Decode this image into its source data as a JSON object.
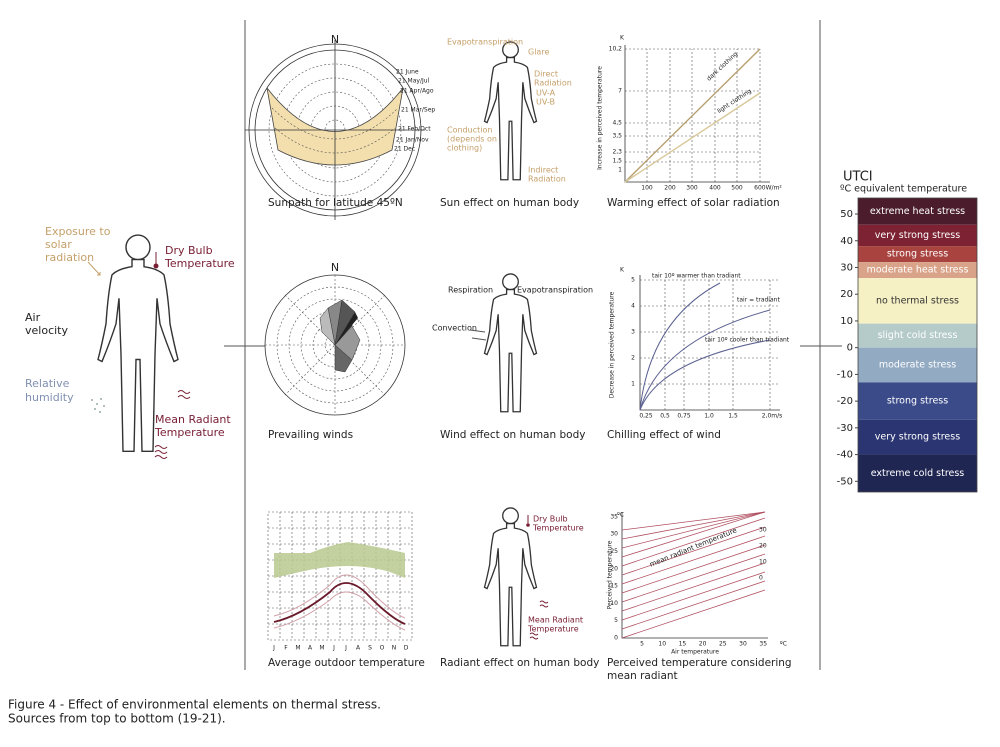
{
  "body_diagram": {
    "solar": [
      "Exposure to",
      "solar",
      "radiation"
    ],
    "dry_bulb": [
      "Dry Bulb",
      "Temperature"
    ],
    "air": [
      "Air",
      "velocity"
    ],
    "humidity": [
      "Relative",
      "humidity"
    ],
    "mean_radiant": [
      "Mean Radiant",
      "Temperature"
    ]
  },
  "panels": [
    {
      "caption": [
        "Sunpath for latitude 45ºN"
      ],
      "labels": [
        "N",
        "21 June",
        "21 May/Jul",
        "21 Apr/Ago",
        "21 Mar/Sep",
        "21 Feb/Oct",
        "21 Jan/Nov",
        "21 Dec"
      ]
    },
    {
      "caption": [
        "Sun effect on human body"
      ],
      "labels": [
        "Evapotranspiration",
        "Glare",
        "Direct",
        "Radiation",
        "UV-A",
        "UV-B",
        "Conduction",
        "(depends on",
        "clothing)",
        "Indirect",
        "Radiation"
      ]
    },
    {
      "caption": [
        "Warming effect of solar radiation"
      ],
      "labels": [
        "K",
        "Increase in perceived temperature",
        "dark clothing",
        "light clothing"
      ],
      "yticks": [
        "10,2",
        "7",
        "4,5",
        "3,5",
        "2,3",
        "1,5",
        "1"
      ],
      "xticks": [
        "100",
        "200",
        "300",
        "400",
        "500",
        "600W/m²"
      ]
    },
    {
      "caption": [
        "Prevailing winds"
      ],
      "labels": [
        "N"
      ]
    },
    {
      "caption": [
        "Wind effect on human body"
      ],
      "labels": [
        "Respiration",
        "Evapotranspiration",
        "Convection"
      ]
    },
    {
      "caption": [
        "Chilling effect of wind"
      ],
      "labels": [
        "K",
        "Decrease in perceived temperature",
        "tair 10º warmer than tradiant",
        "tair = tradiant",
        "tair 10º cooler than tradiant"
      ],
      "yticks": [
        "1",
        "2",
        "3",
        "4",
        "5"
      ],
      "xticks": [
        "0,25",
        "0,5",
        "0,75",
        "1,0",
        "1,5",
        "2,0m/s"
      ]
    },
    {
      "caption": [
        "Average outdoor temperature"
      ],
      "labels": [
        "J",
        "F",
        "M",
        "A",
        "M",
        "J",
        "J",
        "A",
        "S",
        "O",
        "N",
        "D"
      ]
    },
    {
      "caption": [
        "Radiant effect on human body"
      ],
      "labels": [
        "Dry Bulb",
        "Temperature",
        "Mean Radiant",
        "Temperature"
      ]
    },
    {
      "caption": [
        "Perceived temperature considering",
        "mean radiant"
      ],
      "labels": [
        "ºC",
        "Perceived temperature",
        "Air temperature",
        "mean radiant temperature",
        "30",
        "20",
        "10",
        "0"
      ],
      "yticks": [
        "0",
        "5",
        "10",
        "15",
        "20",
        "25",
        "30",
        "35"
      ],
      "xticks": [
        "5",
        "10",
        "15",
        "20",
        "25",
        "30",
        "35",
        "ºC"
      ]
    }
  ],
  "utci": {
    "title": "UTCI",
    "subtitle": "ºC equivalent temperature",
    "ylim": [
      -54,
      56
    ],
    "yticks": [
      50,
      40,
      30,
      20,
      10,
      0,
      -10,
      -20,
      -30,
      -40,
      -50
    ],
    "bands": [
      {
        "name": "extreme heat stress",
        "range": [
          46,
          56
        ],
        "color": "#4a1c2c"
      },
      {
        "name": "very strong stress",
        "range": [
          38,
          46
        ],
        "color": "#7c2232"
      },
      {
        "name": "strong stress",
        "range": [
          32,
          38
        ],
        "color": "#a8433f"
      },
      {
        "name": "moderate heat stress",
        "range": [
          26,
          32
        ],
        "color": "#d9a389"
      },
      {
        "name": "no thermal stress",
        "range": [
          9,
          26
        ],
        "color": "#f6f1c4"
      },
      {
        "name": "slight cold stress",
        "range": [
          0,
          9
        ],
        "color": "#b4cbca"
      },
      {
        "name": "moderate stress",
        "range": [
          -13,
          0
        ],
        "color": "#92aac2"
      },
      {
        "name": "strong stress",
        "range": [
          -27,
          -13
        ],
        "color": "#3b4b8a"
      },
      {
        "name": "very strong stress",
        "range": [
          -40,
          -27
        ],
        "color": "#2b3571"
      },
      {
        "name": "extreme cold stress",
        "range": [
          -54,
          -40
        ],
        "color": "#1f2652"
      }
    ]
  },
  "figure_caption": [
    "Figure 4 - Effect of environmental elements on thermal stress.",
    "Sources from top to bottom (19-21)."
  ]
}
